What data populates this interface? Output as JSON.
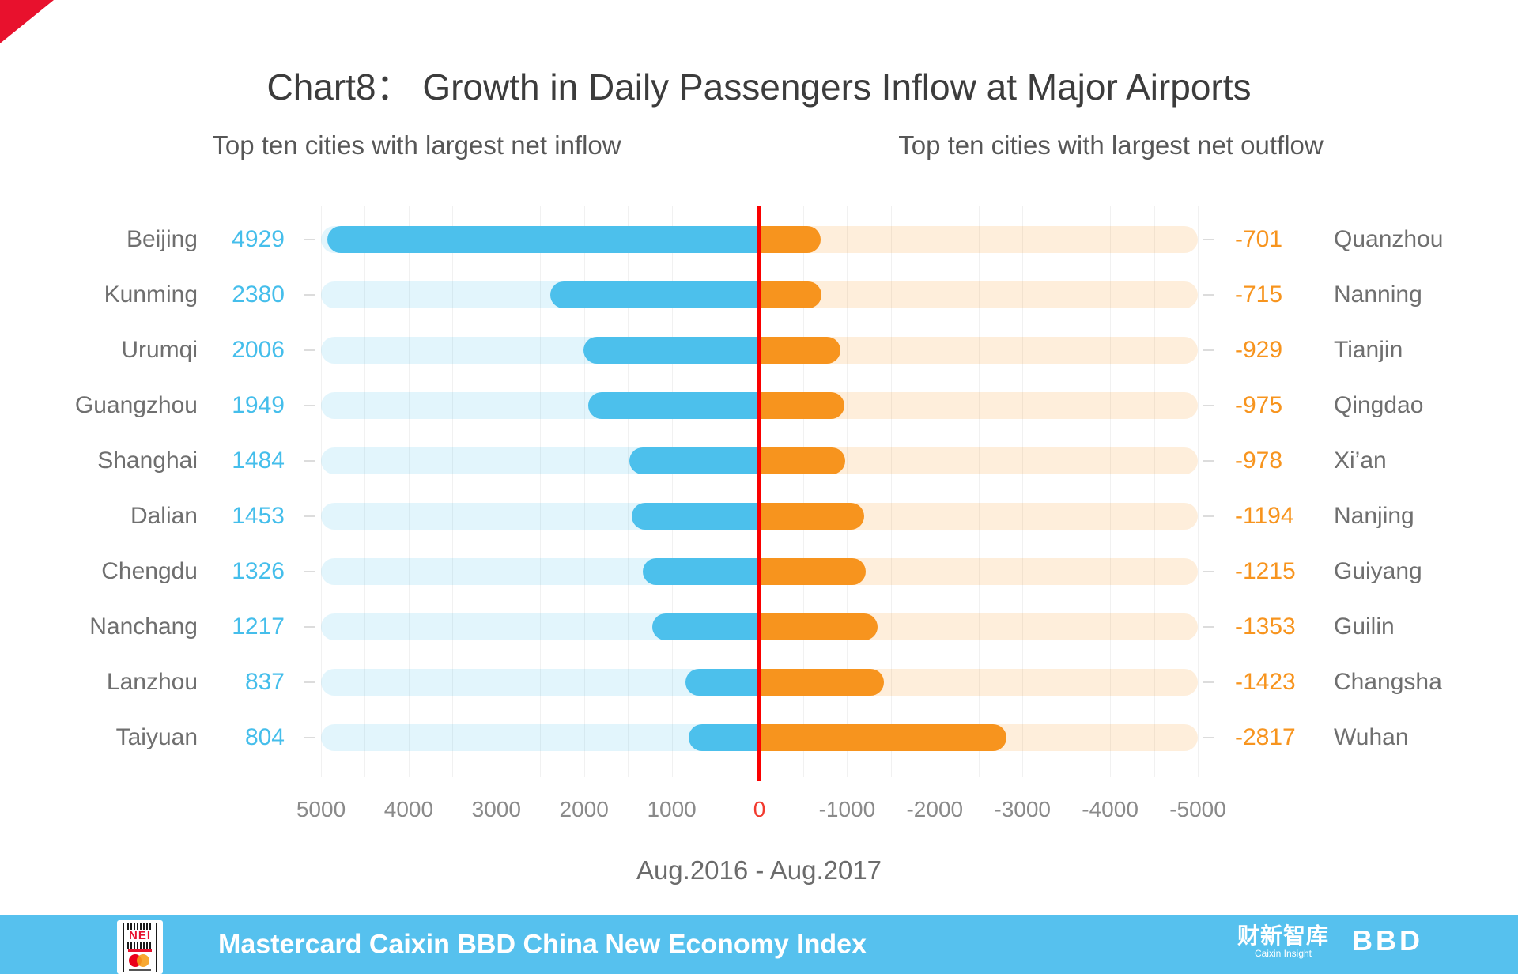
{
  "title": "Chart8： Growth in Daily Passengers Inflow at Major Airports",
  "subtitle_left": "Top ten cities with largest net inflow",
  "subtitle_right": "Top ten cities with largest net outflow",
  "period_label": "Aug.2016 - Aug.2017",
  "chart_data": {
    "type": "bar",
    "subtype": "diverging-paired-horizontal",
    "title": "Growth in Daily Passengers Inflow at Major Airports",
    "xlabel": "Aug.2016 - Aug.2017",
    "xlim": [
      5000,
      -5000
    ],
    "x_tick_labels": [
      "5000",
      "4000",
      "3000",
      "2000",
      "1000",
      "0",
      "-1000",
      "-2000",
      "-3000",
      "-4000",
      "-5000"
    ],
    "grid": true,
    "zero_line_color": "#fa0000",
    "series": [
      {
        "name": "Top ten cities with largest net inflow",
        "color": "#4cc0ec"
      },
      {
        "name": "Top ten cities with largest net outflow",
        "color": "#f7941e"
      }
    ],
    "rows": [
      {
        "inflow_city": "Beijing",
        "inflow_value": 4929,
        "outflow_value": -701,
        "outflow_city": "Quanzhou"
      },
      {
        "inflow_city": "Kunming",
        "inflow_value": 2380,
        "outflow_value": -715,
        "outflow_city": "Nanning"
      },
      {
        "inflow_city": "Urumqi",
        "inflow_value": 2006,
        "outflow_value": -929,
        "outflow_city": "Tianjin"
      },
      {
        "inflow_city": "Guangzhou",
        "inflow_value": 1949,
        "outflow_value": -975,
        "outflow_city": "Qingdao"
      },
      {
        "inflow_city": "Shanghai",
        "inflow_value": 1484,
        "outflow_value": -978,
        "outflow_city": "Xi’an"
      },
      {
        "inflow_city": "Dalian",
        "inflow_value": 1453,
        "outflow_value": -1194,
        "outflow_city": "Nanjing"
      },
      {
        "inflow_city": "Chengdu",
        "inflow_value": 1326,
        "outflow_value": -1215,
        "outflow_city": "Guiyang"
      },
      {
        "inflow_city": "Nanchang",
        "inflow_value": 1217,
        "outflow_value": -1353,
        "outflow_city": "Guilin"
      },
      {
        "inflow_city": "Lanzhou",
        "inflow_value": 837,
        "outflow_value": -1423,
        "outflow_city": "Changsha"
      },
      {
        "inflow_city": "Taiyuan",
        "inflow_value": 804,
        "outflow_value": -2817,
        "outflow_city": "Wuhan"
      }
    ]
  },
  "colors": {
    "inflow_bar": "#4cc0ec",
    "outflow_bar": "#f7941e",
    "inflow_track": "rgba(77,192,236,0.16)",
    "outflow_track": "rgba(247,148,30,0.16)",
    "zero_line": "#fa0000",
    "footer_background": "#56c1ee",
    "corner_triangle": "#e8112d"
  },
  "footer": {
    "text": "Mastercard Caixin BBD China New Economy Index",
    "nei_logo_text": "NEI",
    "caixin_logo": "财新智库",
    "caixin_logo_sub": "Caixin Insight",
    "bbd_logo": "BBD"
  }
}
